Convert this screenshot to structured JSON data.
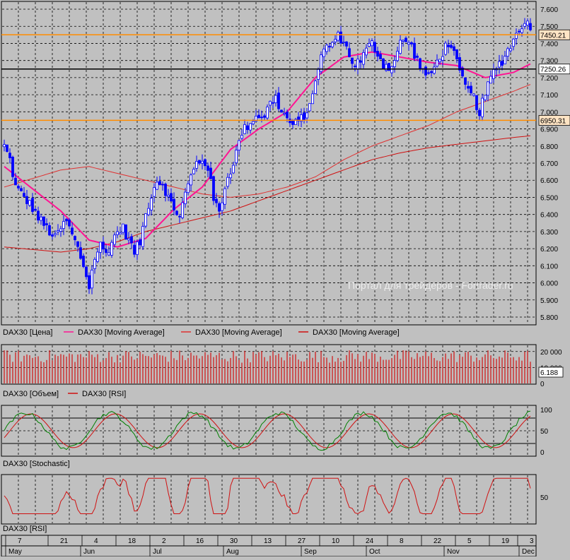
{
  "price_pane": {
    "legend": [
      {
        "text": "DAX30 [Цена]",
        "color": "#000000"
      },
      {
        "text": "DAX30 [Moving Average]",
        "color": "#ff1493"
      },
      {
        "text": "DAX30 [Moving Average]",
        "color": "#e03030"
      },
      {
        "text": "DAX30 [Moving Average]",
        "color": "#d01010"
      }
    ],
    "y_ticks": [
      "7.600",
      "7.500",
      "7.400",
      "7.300",
      "7.200",
      "7.100",
      "7.000",
      "6.900",
      "6.800",
      "6.700",
      "6.600",
      "6.500",
      "6.400",
      "6.300",
      "6.200",
      "6.100",
      "6.000",
      "5.900",
      "5.800"
    ],
    "levels": [
      {
        "label": "7450.21",
        "value": 7450.21,
        "color": "#ff8c00"
      },
      {
        "label": "7250.26",
        "value": 7250.26,
        "color": "#000000"
      },
      {
        "label": "6950.31",
        "value": 6950.31,
        "color": "#ff8c00"
      }
    ],
    "watermark": "Портал для трейдеров - Fortrader.ru"
  },
  "volume_pane": {
    "legend": [
      {
        "text": "DAX30 [Объем]",
        "color": "#000000"
      },
      {
        "text": "DAX30 [RSI]",
        "color": "#d01010"
      }
    ],
    "y_ticks": [
      "20 000",
      "10 000",
      "0"
    ],
    "value_label": "6.188"
  },
  "stoch_pane": {
    "legend": [
      {
        "text": "DAX30 [Stochastic]",
        "color": "#000000"
      }
    ],
    "y_ticks": [
      "100",
      "50",
      "0"
    ]
  },
  "rsi_pane": {
    "legend": [
      {
        "text": "DAX30 [RSI]",
        "color": "#000000"
      }
    ],
    "y_ticks": [
      "50"
    ]
  },
  "time_axis": {
    "days": [
      "7",
      "21",
      "4",
      "18",
      "2",
      "16",
      "30",
      "13",
      "27",
      "10",
      "24",
      "8",
      "22",
      "5",
      "19",
      "3"
    ],
    "months": [
      "May",
      "Jun",
      "Jul",
      "Aug",
      "Sep",
      "Oct",
      "Nov",
      "Dec"
    ]
  },
  "chart_data": {
    "type": "candlestick",
    "ylim": [
      5750,
      7620
    ],
    "ohlc_close_path": [
      [
        0,
        6800
      ],
      [
        4,
        6720
      ],
      [
        8,
        6560
      ],
      [
        12,
        6520
      ],
      [
        16,
        6480
      ],
      [
        20,
        6440
      ],
      [
        24,
        6380
      ],
      [
        28,
        6340
      ],
      [
        32,
        6300
      ],
      [
        36,
        6260
      ],
      [
        40,
        6320
      ],
      [
        44,
        6360
      ],
      [
        48,
        6280
      ],
      [
        52,
        6200
      ],
      [
        56,
        6100
      ],
      [
        60,
        5980
      ],
      [
        64,
        6150
      ],
      [
        68,
        6220
      ],
      [
        72,
        6170
      ],
      [
        76,
        6240
      ],
      [
        80,
        6300
      ],
      [
        84,
        6320
      ],
      [
        88,
        6250
      ],
      [
        92,
        6180
      ],
      [
        96,
        6240
      ],
      [
        100,
        6400
      ],
      [
        104,
        6520
      ],
      [
        108,
        6600
      ],
      [
        112,
        6580
      ],
      [
        116,
        6500
      ],
      [
        120,
        6420
      ],
      [
        124,
        6400
      ],
      [
        128,
        6520
      ],
      [
        132,
        6620
      ],
      [
        136,
        6700
      ],
      [
        140,
        6720
      ],
      [
        144,
        6680
      ],
      [
        148,
        6480
      ],
      [
        152,
        6420
      ],
      [
        156,
        6560
      ],
      [
        160,
        6660
      ],
      [
        164,
        6760
      ],
      [
        168,
        6880
      ],
      [
        172,
        6920
      ],
      [
        176,
        6960
      ],
      [
        180,
        6980
      ],
      [
        184,
        6980
      ],
      [
        188,
        7050
      ],
      [
        192,
        7080
      ],
      [
        196,
        7000
      ],
      [
        200,
        6960
      ],
      [
        204,
        6920
      ],
      [
        208,
        6940
      ],
      [
        212,
        6980
      ],
      [
        216,
        7020
      ],
      [
        220,
        7200
      ],
      [
        224,
        7320
      ],
      [
        228,
        7380
      ],
      [
        232,
        7400
      ],
      [
        236,
        7440
      ],
      [
        240,
        7420
      ],
      [
        244,
        7320
      ],
      [
        248,
        7280
      ],
      [
        252,
        7300
      ],
      [
        256,
        7360
      ],
      [
        260,
        7400
      ],
      [
        264,
        7340
      ],
      [
        268,
        7280
      ],
      [
        272,
        7260
      ],
      [
        276,
        7300
      ],
      [
        280,
        7400
      ],
      [
        284,
        7420
      ],
      [
        288,
        7380
      ],
      [
        292,
        7300
      ],
      [
        296,
        7240
      ],
      [
        300,
        7200
      ],
      [
        304,
        7260
      ],
      [
        308,
        7320
      ],
      [
        312,
        7380
      ],
      [
        316,
        7400
      ],
      [
        320,
        7280
      ],
      [
        324,
        7180
      ],
      [
        328,
        7120
      ],
      [
        332,
        7080
      ],
      [
        336,
        7000
      ],
      [
        340,
        7100
      ],
      [
        344,
        7200
      ],
      [
        348,
        7260
      ],
      [
        352,
        7300
      ],
      [
        356,
        7360
      ],
      [
        360,
        7420
      ],
      [
        364,
        7480
      ],
      [
        368,
        7540
      ],
      [
        372,
        7480
      ]
    ],
    "ma_fast": [
      [
        0,
        6680
      ],
      [
        40,
        6420
      ],
      [
        60,
        6250
      ],
      [
        80,
        6210
      ],
      [
        100,
        6260
      ],
      [
        120,
        6430
      ],
      [
        140,
        6560
      ],
      [
        160,
        6780
      ],
      [
        180,
        6900
      ],
      [
        200,
        7000
      ],
      [
        220,
        7200
      ],
      [
        240,
        7320
      ],
      [
        260,
        7350
      ],
      [
        280,
        7320
      ],
      [
        300,
        7290
      ],
      [
        320,
        7270
      ],
      [
        340,
        7200
      ],
      [
        360,
        7230
      ],
      [
        372,
        7280
      ]
    ],
    "ma_mid": [
      [
        0,
        6560
      ],
      [
        40,
        6660
      ],
      [
        60,
        6680
      ],
      [
        80,
        6640
      ],
      [
        100,
        6600
      ],
      [
        120,
        6560
      ],
      [
        140,
        6520
      ],
      [
        160,
        6500
      ],
      [
        180,
        6520
      ],
      [
        200,
        6560
      ],
      [
        220,
        6620
      ],
      [
        240,
        6720
      ],
      [
        260,
        6800
      ],
      [
        280,
        6860
      ],
      [
        300,
        6920
      ],
      [
        320,
        7000
      ],
      [
        340,
        7060
      ],
      [
        360,
        7120
      ],
      [
        372,
        7160
      ]
    ],
    "ma_slow": [
      [
        0,
        6210
      ],
      [
        40,
        6180
      ],
      [
        60,
        6200
      ],
      [
        80,
        6240
      ],
      [
        100,
        6300
      ],
      [
        120,
        6340
      ],
      [
        140,
        6380
      ],
      [
        160,
        6420
      ],
      [
        180,
        6480
      ],
      [
        200,
        6540
      ],
      [
        220,
        6600
      ],
      [
        240,
        6660
      ],
      [
        260,
        6720
      ],
      [
        280,
        6760
      ],
      [
        300,
        6790
      ],
      [
        320,
        6810
      ],
      [
        340,
        6830
      ],
      [
        360,
        6850
      ],
      [
        372,
        6860
      ]
    ],
    "volume": {
      "ylim": [
        0,
        23000
      ],
      "bar_height_range": [
        13000,
        21000
      ]
    },
    "stoch": {
      "ylim": [
        0,
        100
      ]
    },
    "rsi": {
      "ylim": [
        20,
        80
      ]
    }
  }
}
